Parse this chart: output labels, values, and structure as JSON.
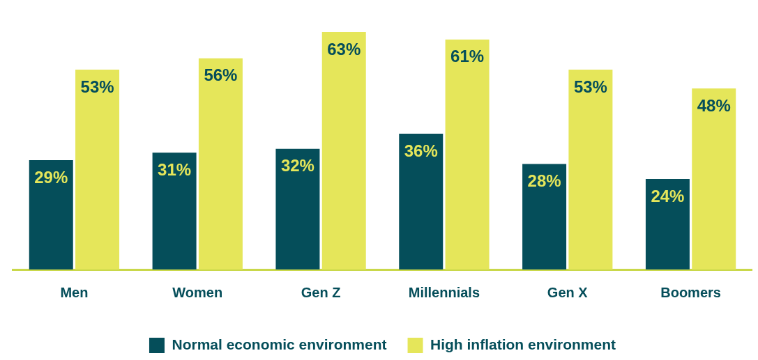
{
  "chart_data": {
    "type": "bar",
    "categories": [
      "Men",
      "Women",
      "Gen Z",
      "Millennials",
      "Gen X",
      "Boomers"
    ],
    "series": [
      {
        "name": "Normal economic environment",
        "color": "#054e5a",
        "values": [
          29,
          31,
          32,
          36,
          28,
          24
        ],
        "value_labels": [
          "29%",
          "31%",
          "32%",
          "36%",
          "28%",
          "24%"
        ]
      },
      {
        "name": "High inflation environment",
        "color": "#e5e65a",
        "values": [
          53,
          56,
          63,
          61,
          53,
          48
        ],
        "value_labels": [
          "53%",
          "56%",
          "63%",
          "61%",
          "53%",
          "48%"
        ]
      }
    ],
    "legend": "bottom",
    "grid": false
  }
}
